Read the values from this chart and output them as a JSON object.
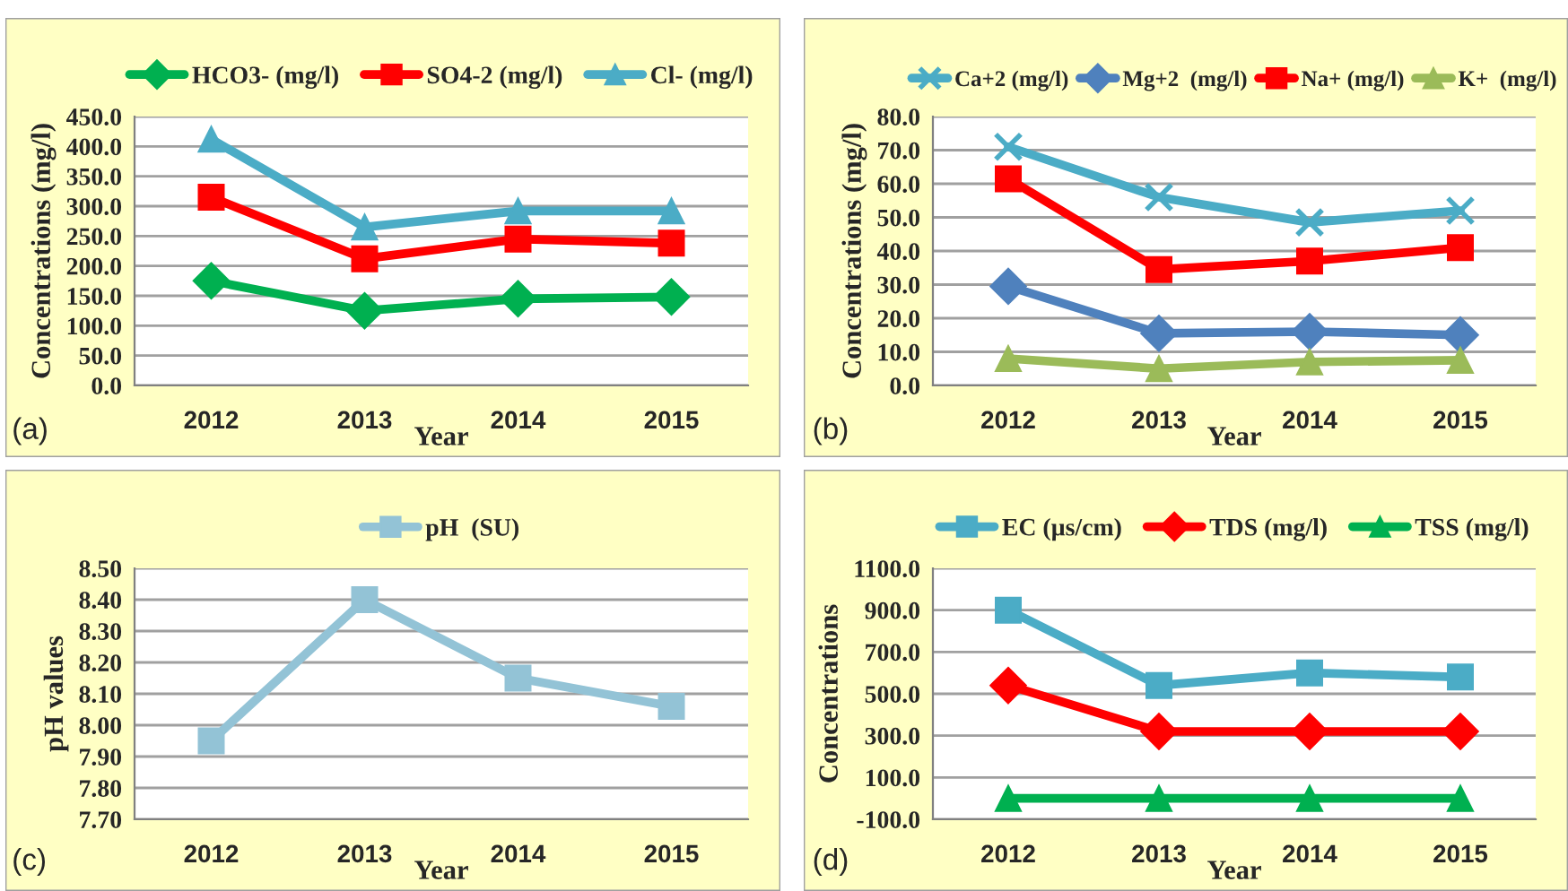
{
  "chart_data": [
    {
      "type": "line",
      "xlabel": "Year",
      "ylabel": "Concentrations (mg/l)",
      "annotations": [
        "(a)"
      ],
      "categories": [
        "2012",
        "2013",
        "2014",
        "2015"
      ],
      "series": [
        {
          "name": "HCO3- (mg/l)",
          "color": "#00b050",
          "marker": "diamond",
          "values": [
            175,
            125,
            145,
            148
          ]
        },
        {
          "name": "SO4-2 (mg/l)",
          "color": "#ff0000",
          "marker": "square",
          "values": [
            315,
            212,
            245,
            238
          ]
        },
        {
          "name": "Cl- (mg/l)",
          "color": "#4bacc6",
          "marker": "triangle",
          "values": [
            412,
            265,
            292,
            292
          ]
        }
      ],
      "ylim": [
        0,
        450
      ],
      "yticks": [
        {
          "value": 0,
          "label": "0.0"
        },
        {
          "value": 50,
          "label": "50.0"
        },
        {
          "value": 100,
          "label": "100.0"
        },
        {
          "value": 150,
          "label": "150.0"
        },
        {
          "value": 200,
          "label": "200.0"
        },
        {
          "value": 250,
          "label": "250.0"
        },
        {
          "value": 300,
          "label": "300.0"
        },
        {
          "value": 350,
          "label": "350.0"
        },
        {
          "value": 400,
          "label": "400.0"
        },
        {
          "value": 450,
          "label": "450.0"
        }
      ],
      "grid": "y",
      "legend": "top"
    },
    {
      "type": "line",
      "xlabel": "Year",
      "ylabel": "Concentrations (mg/l)",
      "annotations": [
        "(b)"
      ],
      "categories": [
        "2012",
        "2013",
        "2014",
        "2015"
      ],
      "series": [
        {
          "name": "Ca+2 (mg/l)",
          "color": "#4bacc6",
          "marker": "cross",
          "values": [
            71,
            56,
            48.5,
            52
          ]
        },
        {
          "name": "Mg+2  (mg/l)",
          "color": "#4f81bd",
          "marker": "diamond",
          "values": [
            29.5,
            15.5,
            16,
            15
          ]
        },
        {
          "name": "Na+ (mg/l)",
          "color": "#ff0000",
          "marker": "square",
          "values": [
            61.5,
            34.5,
            37,
            41
          ]
        },
        {
          "name": "K+  (mg/l)",
          "color": "#9bbb59",
          "marker": "triangle",
          "values": [
            8,
            5,
            7,
            7.5
          ]
        }
      ],
      "ylim": [
        0,
        80
      ],
      "yticks": [
        {
          "value": 0,
          "label": "0.0"
        },
        {
          "value": 10,
          "label": "10.0"
        },
        {
          "value": 20,
          "label": "20.0"
        },
        {
          "value": 30,
          "label": "30.0"
        },
        {
          "value": 40,
          "label": "40.0"
        },
        {
          "value": 50,
          "label": "50.0"
        },
        {
          "value": 60,
          "label": "60.0"
        },
        {
          "value": 70,
          "label": "70.0"
        },
        {
          "value": 80,
          "label": "80.0"
        }
      ],
      "grid": "y",
      "legend": "top"
    },
    {
      "type": "line",
      "xlabel": "Year",
      "ylabel": "pH values",
      "annotations": [
        "(c)"
      ],
      "categories": [
        "2012",
        "2013",
        "2014",
        "2015"
      ],
      "series": [
        {
          "name": "pH  (SU)",
          "color": "#93c3d6",
          "marker": "square",
          "values": [
            7.95,
            8.4,
            8.15,
            8.06
          ]
        }
      ],
      "ylim": [
        7.7,
        8.5
      ],
      "yticks": [
        {
          "value": 7.7,
          "label": "7.70"
        },
        {
          "value": 7.8,
          "label": "7.80"
        },
        {
          "value": 7.9,
          "label": "7.90"
        },
        {
          "value": 8.0,
          "label": "8.00"
        },
        {
          "value": 8.1,
          "label": "8.10"
        },
        {
          "value": 8.2,
          "label": "8.20"
        },
        {
          "value": 8.3,
          "label": "8.30"
        },
        {
          "value": 8.4,
          "label": "8.40"
        },
        {
          "value": 8.5,
          "label": "8.50"
        }
      ],
      "grid": "y",
      "legend": "top"
    },
    {
      "type": "line",
      "xlabel": "Year",
      "ylabel": "Concentrations",
      "annotations": [
        "(d)"
      ],
      "categories": [
        "2012",
        "2013",
        "2014",
        "2015"
      ],
      "series": [
        {
          "name": "EC (µs/cm)",
          "color": "#4bacc6",
          "marker": "square",
          "values": [
            900,
            540,
            600,
            580
          ]
        },
        {
          "name": "TDS (mg/l)",
          "color": "#ff0000",
          "marker": "diamond",
          "values": [
            540,
            320,
            320,
            320
          ]
        },
        {
          "name": "TSS (mg/l)",
          "color": "#00b050",
          "marker": "triangle",
          "values": [
            0,
            0,
            0,
            0
          ]
        }
      ],
      "ylim": [
        -100,
        1100
      ],
      "yticks": [
        {
          "value": -100,
          "label": "-100.0"
        },
        {
          "value": 100,
          "label": "100.0"
        },
        {
          "value": 300,
          "label": "300.0"
        },
        {
          "value": 500,
          "label": "500.0"
        },
        {
          "value": 700,
          "label": "700.0"
        },
        {
          "value": 900,
          "label": "900.0"
        },
        {
          "value": 1100,
          "label": "1100.0"
        }
      ],
      "grid": "y",
      "legend": "top"
    }
  ]
}
